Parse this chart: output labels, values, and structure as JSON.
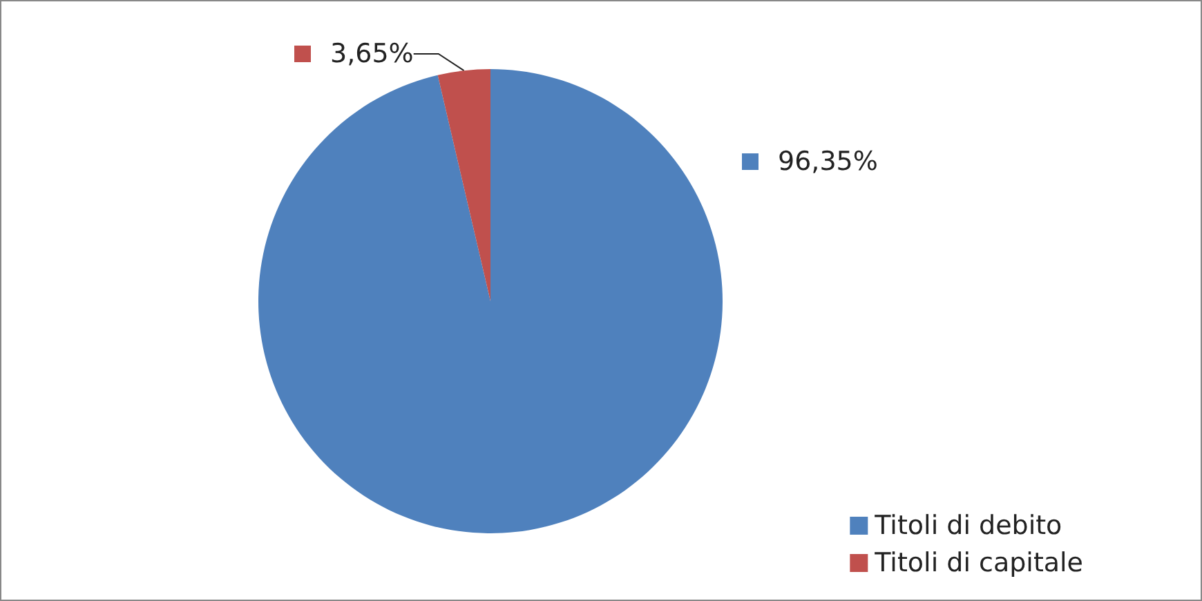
{
  "chart_data": {
    "type": "pie",
    "categories": [
      "Titoli di debito",
      "Titoli di capitale"
    ],
    "values": [
      96.35,
      3.65
    ],
    "colors": [
      "#4f81bd",
      "#c0504d"
    ],
    "value_labels": [
      "96,35%",
      "3,65%"
    ],
    "legend": "bottom right"
  }
}
